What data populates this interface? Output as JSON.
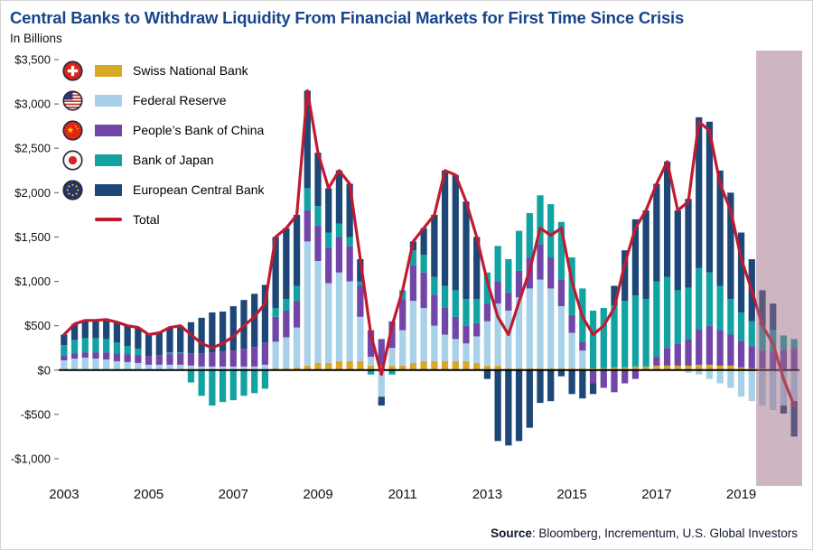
{
  "title": "Central Banks to Withdraw Liquidity From Financial Markets for First Time Since Crisis",
  "subtitle": "In Billions",
  "source": {
    "label": "Source",
    "rest": ": Bloomberg, Incrementum, U.S. Global Investors"
  },
  "legend": [
    {
      "label": "Swiss National Bank",
      "color": "#d9a827",
      "flag": "switzerland"
    },
    {
      "label": "Federal Reserve",
      "color": "#a7d1e8",
      "flag": "united-states"
    },
    {
      "label": "People’s Bank of China",
      "color": "#7245a8",
      "flag": "china"
    },
    {
      "label": "Bank of Japan",
      "color": "#12a2a2",
      "flag": "japan"
    },
    {
      "label": "European Central Bank",
      "color": "#1d4777",
      "flag": "european-union"
    },
    {
      "label": "Total",
      "color": "#c01a31",
      "style": "line"
    }
  ],
  "chart_data": {
    "type": "bar",
    "stacked": true,
    "overlay_line": "Total",
    "title": "Central Banks to Withdraw Liquidity From Financial Markets for First Time Since Crisis",
    "ylabel": "In Billions ($B)",
    "ylim": [
      -1000,
      3500
    ],
    "ytick_step": 500,
    "xtick_years": [
      2003,
      2005,
      2007,
      2009,
      2011,
      2013,
      2015,
      2017,
      2019
    ],
    "total_color": "#c01a31",
    "forecast_band": {
      "start_index": 66,
      "color": "#9c6b85"
    },
    "x": [
      "2003 Q1",
      "2003 Q2",
      "2003 Q3",
      "2003 Q4",
      "2004 Q1",
      "2004 Q2",
      "2004 Q3",
      "2004 Q4",
      "2005 Q1",
      "2005 Q2",
      "2005 Q3",
      "2005 Q4",
      "2006 Q1",
      "2006 Q2",
      "2006 Q3",
      "2006 Q4",
      "2007 Q1",
      "2007 Q2",
      "2007 Q3",
      "2007 Q4",
      "2008 Q1",
      "2008 Q2",
      "2008 Q3",
      "2008 Q4",
      "2009 Q1",
      "2009 Q2",
      "2009 Q3",
      "2009 Q4",
      "2010 Q1",
      "2010 Q2",
      "2010 Q3",
      "2010 Q4",
      "2011 Q1",
      "2011 Q2",
      "2011 Q3",
      "2011 Q4",
      "2012 Q1",
      "2012 Q2",
      "2012 Q3",
      "2012 Q4",
      "2013 Q1",
      "2013 Q2",
      "2013 Q3",
      "2013 Q4",
      "2014 Q1",
      "2014 Q2",
      "2014 Q3",
      "2014 Q4",
      "2015 Q1",
      "2015 Q2",
      "2015 Q3",
      "2015 Q4",
      "2016 Q1",
      "2016 Q2",
      "2016 Q3",
      "2016 Q4",
      "2017 Q1",
      "2017 Q2",
      "2017 Q3",
      "2017 Q4",
      "2018 Q1",
      "2018 Q2",
      "2018 Q3",
      "2018 Q4",
      "2019 Q1",
      "2019 Q2",
      "2019 Q3",
      "2019 Q4",
      "2020 Q1",
      "2020 Q2"
    ],
    "series": [
      {
        "name": "Swiss National Bank",
        "color": "#d9a827",
        "values": [
          10,
          10,
          10,
          10,
          10,
          10,
          10,
          10,
          0,
          0,
          0,
          0,
          0,
          0,
          0,
          0,
          0,
          0,
          0,
          0,
          20,
          20,
          30,
          50,
          80,
          80,
          100,
          100,
          100,
          50,
          50,
          50,
          50,
          80,
          100,
          100,
          100,
          100,
          100,
          80,
          50,
          50,
          20,
          20,
          20,
          20,
          20,
          20,
          20,
          20,
          20,
          20,
          30,
          30,
          40,
          40,
          50,
          50,
          50,
          50,
          60,
          60,
          50,
          50,
          30,
          20,
          20,
          10,
          10,
          0
        ]
      },
      {
        "name": "Federal Reserve",
        "color": "#a7d1e8",
        "values": [
          100,
          120,
          130,
          120,
          110,
          90,
          80,
          70,
          60,
          60,
          60,
          60,
          50,
          40,
          40,
          40,
          40,
          40,
          40,
          60,
          300,
          350,
          450,
          1400,
          1150,
          900,
          1000,
          900,
          500,
          100,
          -300,
          200,
          400,
          700,
          600,
          400,
          300,
          250,
          200,
          300,
          500,
          700,
          650,
          800,
          900,
          1000,
          900,
          700,
          400,
          200,
          0,
          0,
          0,
          0,
          0,
          0,
          0,
          0,
          0,
          -30,
          -50,
          -100,
          -150,
          -200,
          -300,
          -350,
          -400,
          -450,
          -400,
          -350
        ]
      },
      {
        "name": "People’s Bank of China",
        "color": "#7245a8",
        "values": [
          50,
          60,
          60,
          70,
          80,
          90,
          90,
          90,
          100,
          110,
          120,
          130,
          140,
          150,
          160,
          170,
          180,
          200,
          220,
          250,
          280,
          300,
          300,
          350,
          400,
          400,
          400,
          400,
          350,
          300,
          300,
          300,
          350,
          400,
          400,
          350,
          300,
          250,
          200,
          150,
          200,
          250,
          200,
          300,
          350,
          400,
          350,
          300,
          200,
          100,
          -150,
          -200,
          -250,
          -150,
          -100,
          0,
          100,
          200,
          250,
          300,
          400,
          440,
          400,
          350,
          300,
          250,
          200,
          200,
          220,
          250
        ]
      },
      {
        "name": "Bank of Japan",
        "color": "#12a2a2",
        "values": [
          120,
          150,
          160,
          160,
          150,
          120,
          90,
          70,
          0,
          0,
          20,
          10,
          -140,
          -290,
          -400,
          -360,
          -340,
          -290,
          -260,
          -210,
          100,
          130,
          170,
          250,
          220,
          170,
          150,
          100,
          50,
          -50,
          0,
          -50,
          100,
          170,
          200,
          200,
          250,
          300,
          300,
          270,
          350,
          400,
          380,
          450,
          500,
          550,
          600,
          650,
          650,
          600,
          650,
          680,
          700,
          750,
          800,
          760,
          850,
          800,
          600,
          580,
          690,
          600,
          500,
          400,
          320,
          280,
          280,
          240,
          160,
          100
        ]
      },
      {
        "name": "European Central Bank",
        "color": "#1d4777",
        "values": [
          120,
          180,
          200,
          200,
          220,
          230,
          230,
          240,
          240,
          250,
          280,
          300,
          350,
          400,
          450,
          450,
          500,
          550,
          600,
          650,
          800,
          800,
          800,
          1100,
          600,
          500,
          600,
          600,
          250,
          0,
          -100,
          0,
          0,
          100,
          300,
          700,
          1300,
          1300,
          1100,
          700,
          -100,
          -800,
          -850,
          -800,
          -650,
          -370,
          -350,
          -70,
          -270,
          -320,
          -120,
          0,
          220,
          570,
          860,
          1000,
          1100,
          1300,
          900,
          1000,
          1700,
          1700,
          1300,
          1200,
          900,
          700,
          400,
          300,
          -90,
          -400
        ]
      }
    ],
    "total": [
      400,
      520,
      560,
      560,
      570,
      540,
      500,
      480,
      400,
      420,
      480,
      500,
      400,
      300,
      250,
      300,
      380,
      500,
      600,
      750,
      1500,
      1600,
      1750,
      3150,
      2450,
      2050,
      2250,
      2100,
      1250,
      400,
      -50,
      500,
      900,
      1450,
      1600,
      1750,
      2250,
      2200,
      1900,
      1500,
      1000,
      600,
      400,
      770,
      1120,
      1600,
      1520,
      1600,
      1000,
      600,
      400,
      500,
      700,
      1200,
      1600,
      1800,
      2100,
      2350,
      1800,
      1900,
      2800,
      2700,
      2100,
      1800,
      1250,
      900,
      500,
      300,
      -100,
      -400
    ]
  }
}
